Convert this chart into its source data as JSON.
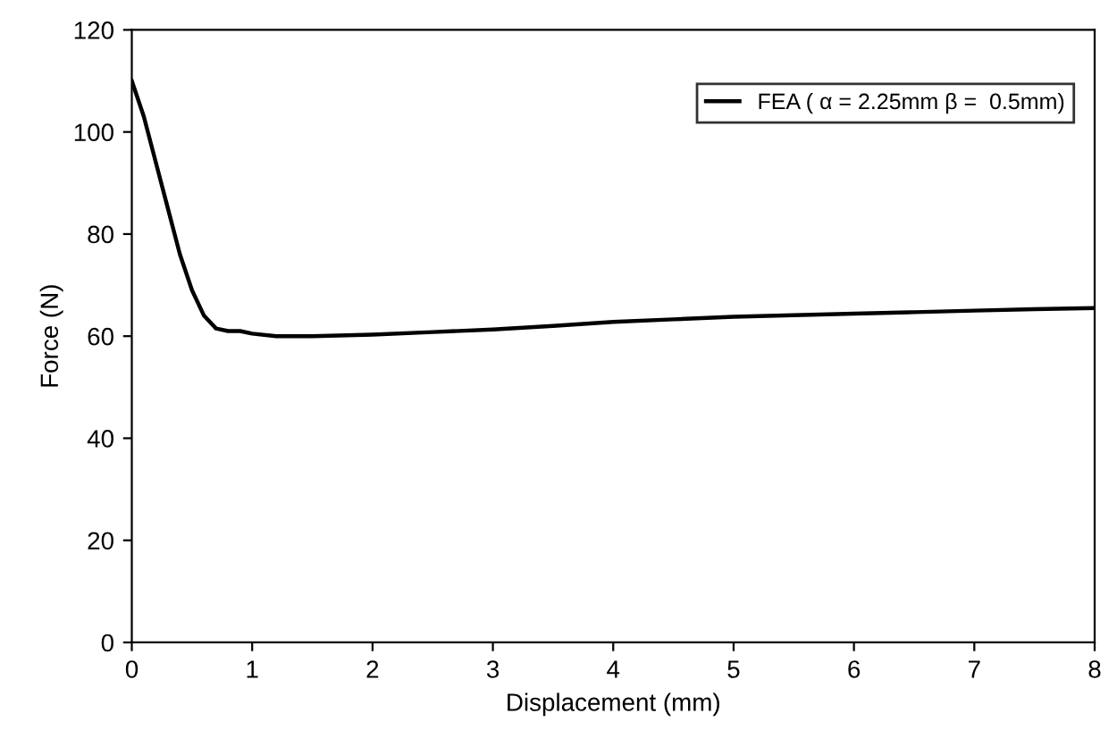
{
  "chart_data": {
    "type": "line",
    "xlabel": "Displacement (mm)",
    "ylabel": "Force (N)",
    "x": [
      0,
      0.1,
      0.2,
      0.3,
      0.4,
      0.5,
      0.6,
      0.7,
      0.8,
      0.9,
      1.0,
      1.2,
      1.5,
      2,
      2.5,
      3,
      3.5,
      4,
      4.5,
      5,
      5.5,
      6,
      6.5,
      7,
      7.5,
      8
    ],
    "series": [
      {
        "name": "FEA ( α = 2.25mm β =  0.5mm)",
        "color": "#000000",
        "values": [
          110,
          103,
          94,
          85,
          76,
          69,
          64,
          61.5,
          61,
          61,
          60.5,
          60,
          60,
          60.3,
          60.8,
          61.3,
          62,
          62.8,
          63.3,
          63.8,
          64.1,
          64.4,
          64.7,
          65,
          65.3,
          65.5
        ]
      }
    ],
    "xlim": [
      0,
      8
    ],
    "xticks": [
      0,
      1,
      2,
      3,
      4,
      5,
      6,
      7,
      8
    ],
    "ylim": [
      0,
      120
    ],
    "yticks": [
      0,
      20,
      40,
      60,
      80,
      100,
      120
    ],
    "grid": false,
    "legend": "top right",
    "marker": "none",
    "line_style": "solid"
  }
}
